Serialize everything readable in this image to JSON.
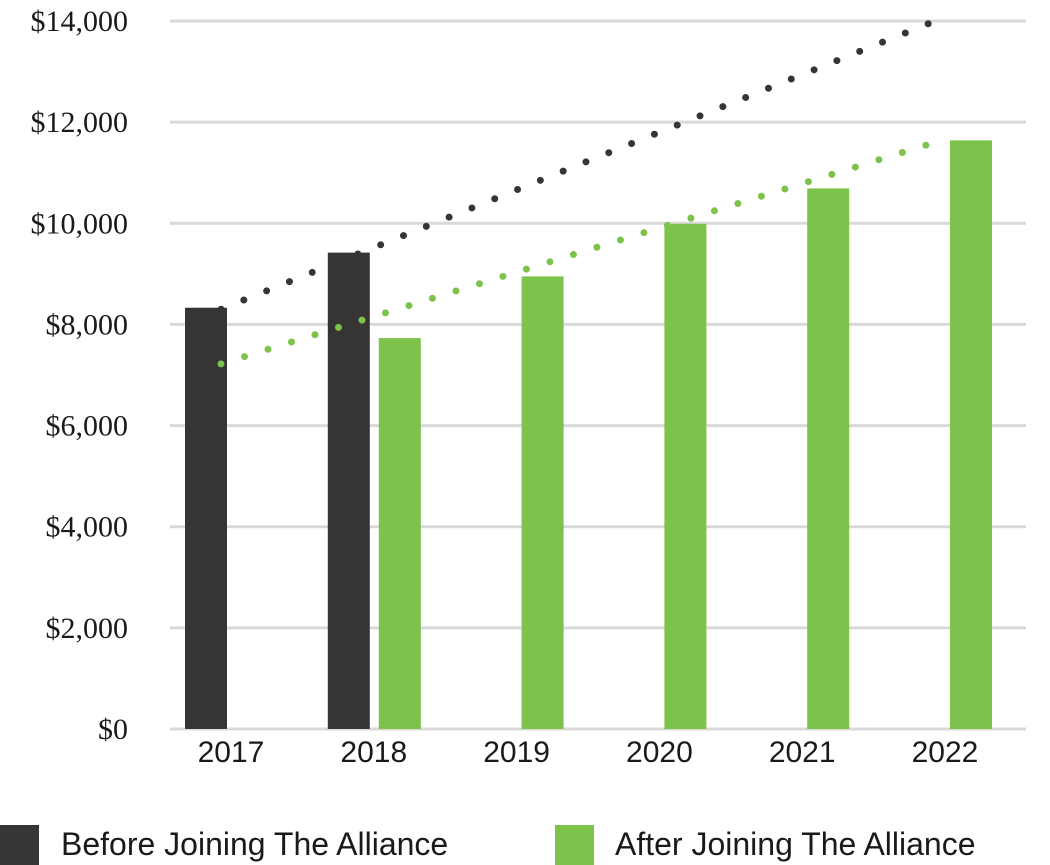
{
  "chart_data": {
    "type": "bar",
    "categories": [
      "2017",
      "2018",
      "2019",
      "2020",
      "2021",
      "2022"
    ],
    "series": [
      {
        "name": "Before Joining The Alliance",
        "color": "#363534",
        "values": [
          8330,
          9420,
          null,
          null,
          null,
          null
        ]
      },
      {
        "name": "After Joining The Alliance",
        "color": "#7dc24b",
        "values": [
          null,
          7730,
          8950,
          9990,
          10690,
          11640
        ]
      }
    ],
    "trendlines": [
      {
        "series": "Before Joining The Alliance",
        "style": "dotted",
        "color": "#363534",
        "from": {
          "x": "2017",
          "y": 8300
        },
        "to": {
          "x": "2022",
          "y": 14000
        }
      },
      {
        "series": "After Joining The Alliance",
        "style": "dotted",
        "color": "#7dc24b",
        "from": {
          "x": "2017",
          "y": 7220
        },
        "to": {
          "x": "2022",
          "y": 11600
        }
      }
    ],
    "yticks": [
      "$0",
      "$2,000",
      "$4,000",
      "$6,000",
      "$8,000",
      "$10,000",
      "$12,000",
      "$14,000"
    ],
    "ylim": [
      0,
      14000
    ],
    "grid": true,
    "legend_position": "bottom",
    "title": "",
    "xlabel": "",
    "ylabel": ""
  }
}
